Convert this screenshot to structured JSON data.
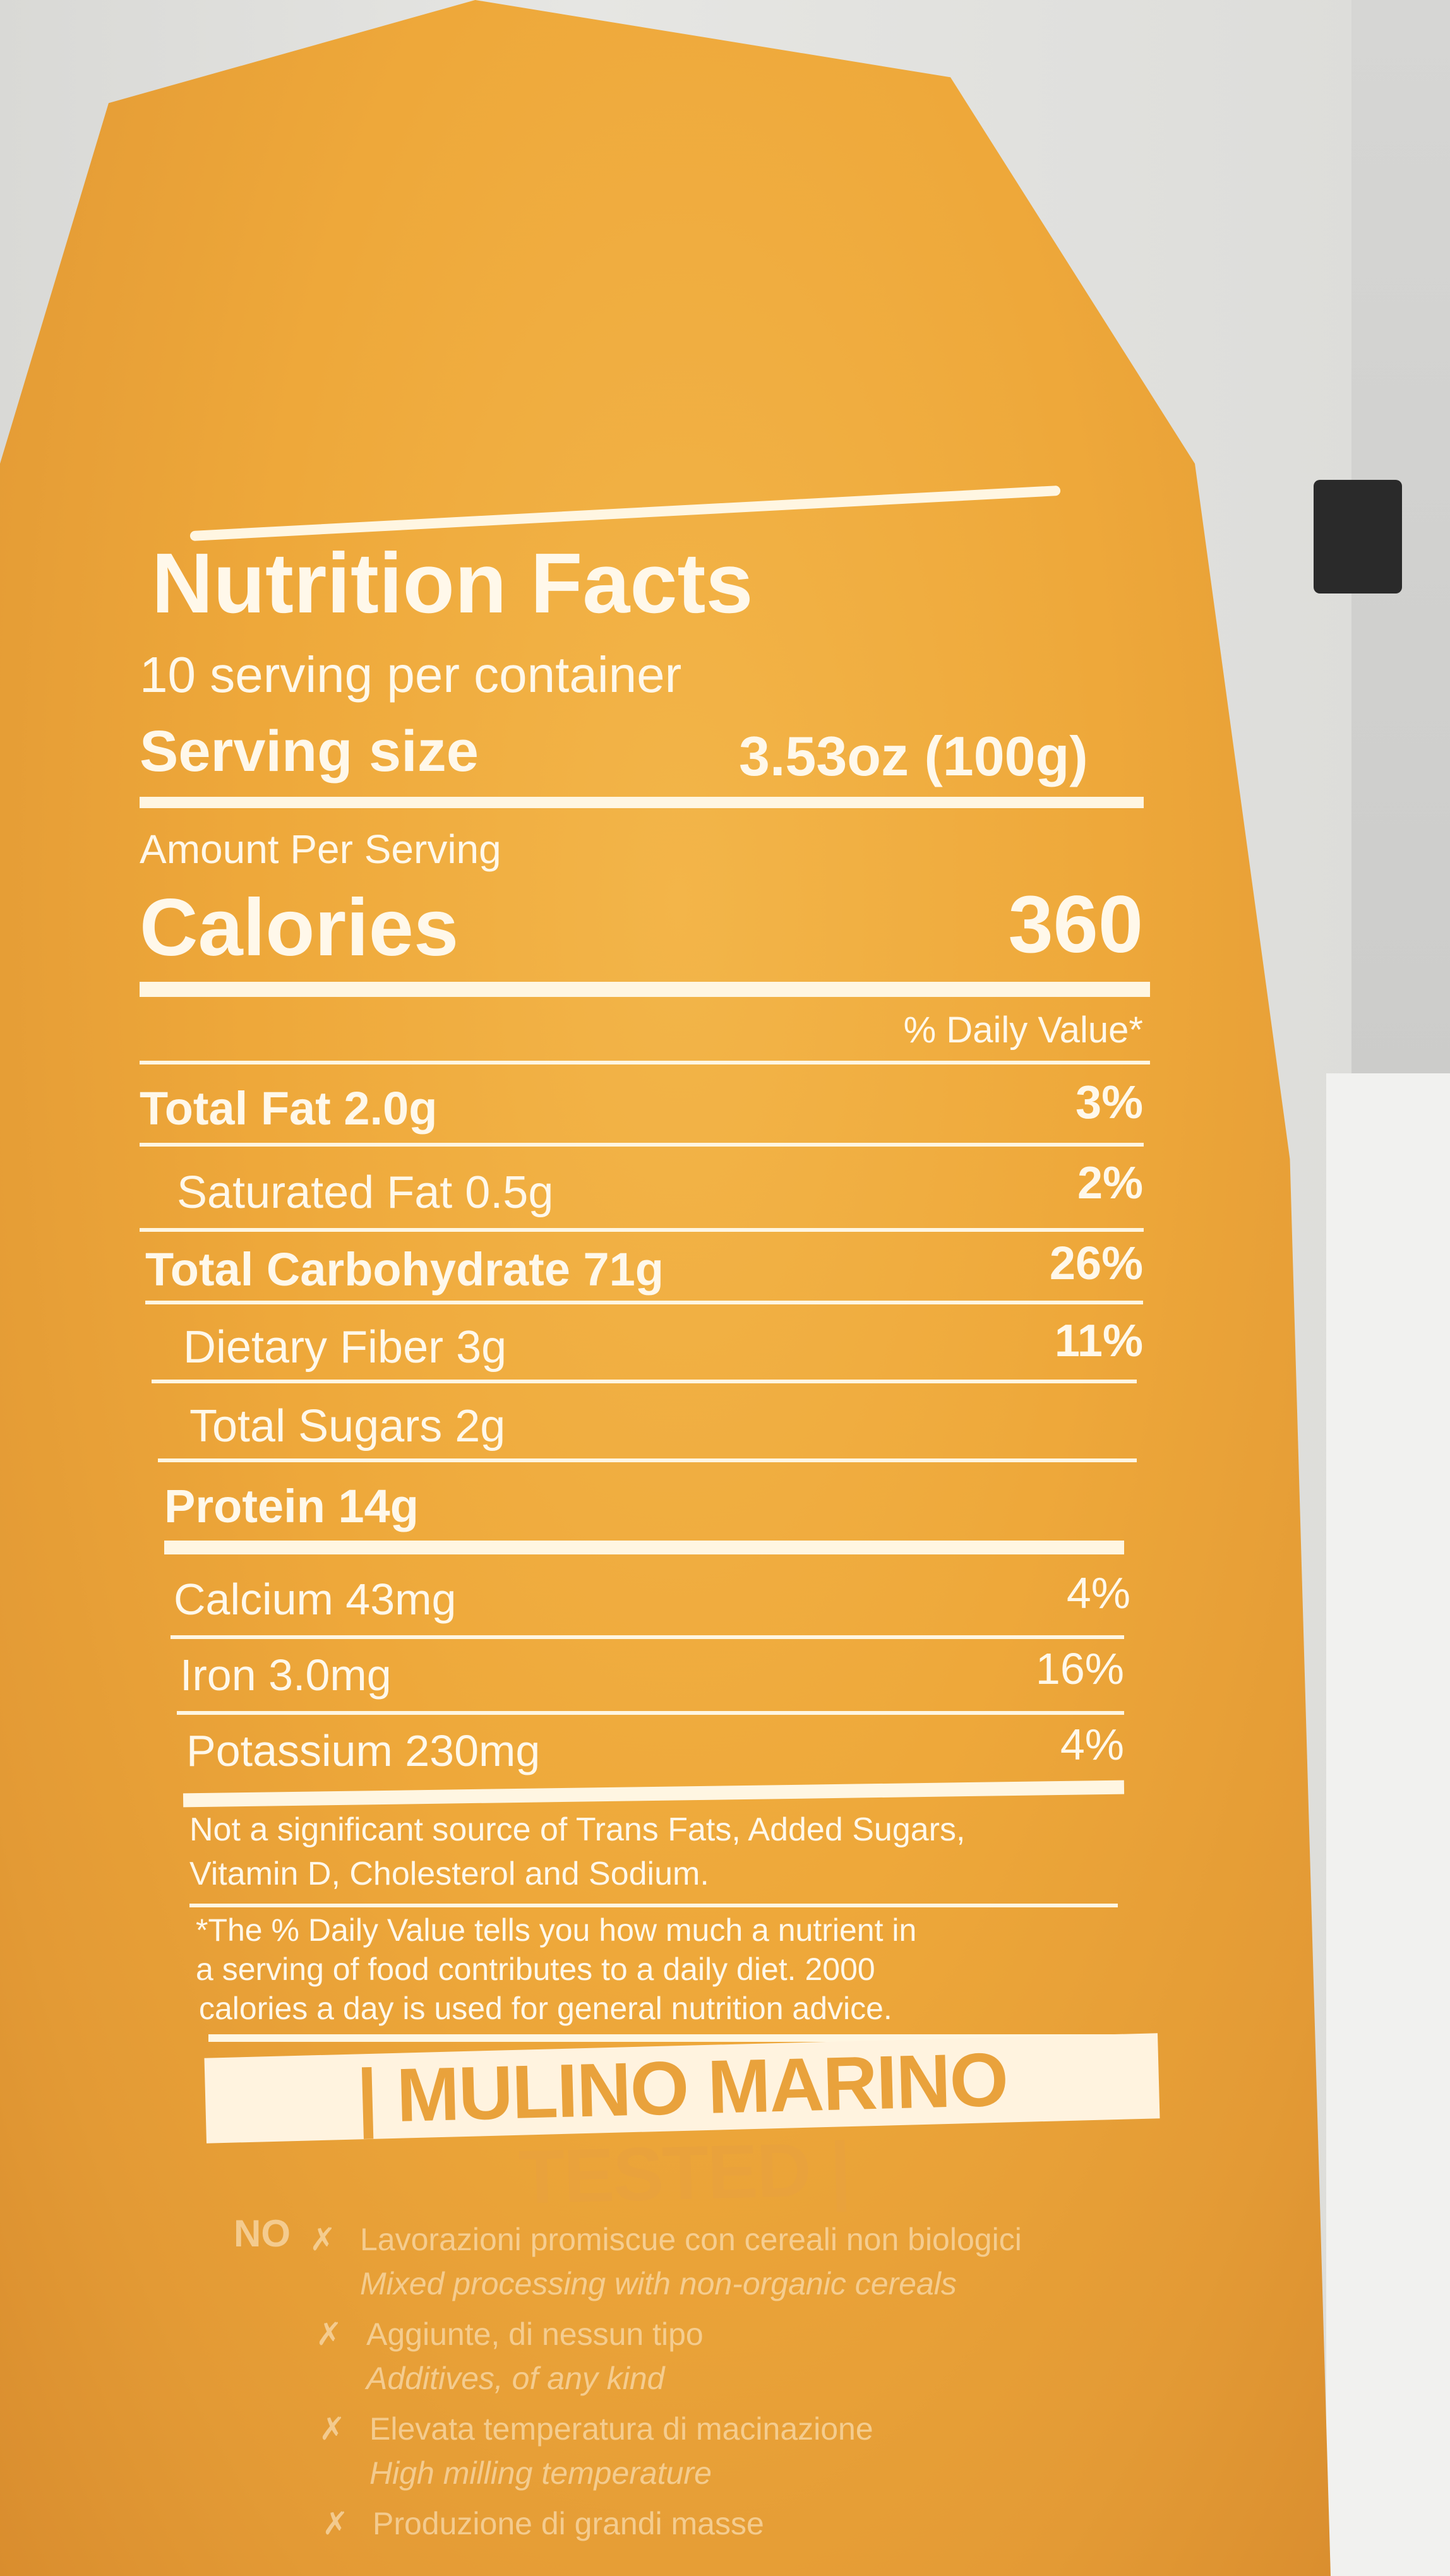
{
  "label": {
    "title": "Nutrition Facts",
    "servings": "10 serving per container",
    "serving_size_label": "Serving size",
    "serving_size_value": "3.53oz (100g)",
    "amount_per_serving": "Amount Per Serving",
    "calories_label": "Calories",
    "calories_value": "360",
    "dv_header": "% Daily Value*",
    "rows": [
      {
        "name": "Total Fat 2.0g",
        "dv": "3%"
      },
      {
        "name": "Saturated Fat 0.5g",
        "dv": "2%"
      },
      {
        "name": "Total Carbohydrate 71g",
        "dv": "26%"
      },
      {
        "name": "Dietary Fiber 3g",
        "dv": "11%"
      },
      {
        "name": "Total Sugars 2g",
        "dv": ""
      },
      {
        "name": "Protein 14g",
        "dv": ""
      },
      {
        "name": "Calcium 43mg",
        "dv": "4%"
      },
      {
        "name": "Iron 3.0mg",
        "dv": "16%"
      },
      {
        "name": "Potassium 230mg",
        "dv": "4%"
      }
    ],
    "note1_line1": "Not a significant source of Trans Fats, Added Sugars,",
    "note1_line2": "Vitamin D, Cholesterol and Sodium.",
    "note2_line1": "*The % Daily Value tells you how much a nutrient in",
    "note2_line2": "a serving of food contributes to a daily diet. 2000",
    "note2_line3": "calories a day is used for general nutrition advice."
  },
  "banner": {
    "text": "| MULINO MARINO TESTED |"
  },
  "no_list": {
    "prefix": "NO",
    "items": [
      {
        "it": "Lavorazioni promiscue con cereali non biologici",
        "en": "Mixed processing with non-organic cereals"
      },
      {
        "it": "Aggiunte, di nessun tipo",
        "en": "Additives, of any kind"
      },
      {
        "it": "Elevata temperatura di macinazione",
        "en": "High milling temperature"
      },
      {
        "it": "Produzione di grandi masse",
        "en": ""
      }
    ]
  },
  "colors": {
    "bag": "#eea83a",
    "print": "#fff8ea"
  }
}
